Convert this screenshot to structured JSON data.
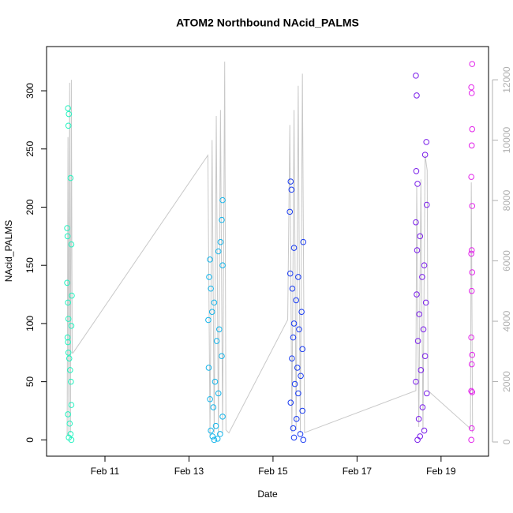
{
  "chart_data": {
    "type": "scatter",
    "title": "ATOM2 Northbound NAcid_PALMS",
    "x_label": "Date",
    "y_label": "NAcid_PALMS",
    "xlim": [
      9.61,
      20.13
    ],
    "xticks": [
      {
        "value": 11,
        "label": "Feb 11"
      },
      {
        "value": 13,
        "label": "Feb 13"
      },
      {
        "value": 15,
        "label": "Feb 15"
      },
      {
        "value": 17,
        "label": "Feb 17"
      },
      {
        "value": 19,
        "label": "Feb 19"
      }
    ],
    "ylim": [
      -14,
      338
    ],
    "yticks": [
      0,
      50,
      100,
      150,
      200,
      250,
      300
    ],
    "y2lim": [
      -470,
      13100
    ],
    "y2ticks": [
      0,
      2000,
      4000,
      6000,
      8000,
      10000,
      12000
    ],
    "series": [
      {
        "color": "#22f2bf",
        "x": [
          10.12,
          10.14,
          10.13,
          10.18,
          10.1,
          10.11,
          10.2,
          10.1,
          10.21,
          10.12,
          10.13,
          10.2,
          10.11,
          10.12,
          10.13,
          10.15,
          10.17,
          10.19,
          10.2,
          10.12,
          10.16,
          10.18,
          10.14,
          10.2
        ],
        "values": [
          285,
          280,
          270,
          225,
          182,
          175,
          168,
          135,
          124,
          118,
          104,
          98,
          88,
          84,
          75,
          70,
          60,
          50,
          30,
          22,
          14,
          5,
          2,
          0
        ]
      },
      {
        "color": "#13b4ea",
        "x": [
          13.8,
          13.78,
          13.5,
          13.7,
          13.48,
          13.75,
          13.52,
          13.8,
          13.46,
          13.6,
          13.72,
          13.55,
          13.66,
          13.78,
          13.47,
          13.62,
          13.7,
          13.5,
          13.58,
          13.8,
          13.64,
          13.52,
          13.74,
          13.56,
          13.68,
          13.6
        ],
        "values": [
          206,
          189,
          155,
          162,
          140,
          170,
          130,
          150,
          103,
          118,
          95,
          110,
          85,
          72,
          62,
          50,
          40,
          35,
          28,
          20,
          12,
          8,
          5,
          3,
          1,
          0
        ]
      },
      {
        "color": "#1a3cf2",
        "x": [
          15.42,
          15.44,
          15.4,
          15.72,
          15.5,
          15.41,
          15.6,
          15.46,
          15.55,
          15.68,
          15.5,
          15.62,
          15.48,
          15.7,
          15.45,
          15.58,
          15.66,
          15.52,
          15.6,
          15.42,
          15.7,
          15.56,
          15.48,
          15.65,
          15.5,
          15.72
        ],
        "values": [
          222,
          215,
          196,
          170,
          165,
          143,
          140,
          130,
          120,
          110,
          100,
          95,
          88,
          78,
          70,
          62,
          55,
          48,
          40,
          32,
          25,
          18,
          10,
          5,
          2,
          0
        ]
      },
      {
        "color": "#7a1eea",
        "x": [
          18.4,
          18.42,
          18.41,
          18.65,
          18.44,
          18.62,
          18.4,
          18.66,
          18.5,
          18.43,
          18.6,
          18.55,
          18.42,
          18.64,
          18.48,
          18.58,
          18.45,
          18.62,
          18.52,
          18.4,
          18.66,
          18.56,
          18.47,
          18.6,
          18.5,
          18.44
        ],
        "values": [
          313,
          296,
          231,
          256,
          220,
          245,
          187,
          202,
          175,
          163,
          150,
          140,
          125,
          118,
          108,
          95,
          85,
          72,
          60,
          50,
          40,
          28,
          18,
          8,
          3,
          0
        ]
      },
      {
        "color": "#e223ea",
        "x": [
          19.74,
          19.72,
          19.73,
          19.74,
          19.73,
          19.72,
          19.74,
          19.73,
          19.72,
          19.74,
          19.73,
          19.72,
          19.74,
          19.73,
          19.72,
          19.74,
          19.73,
          19.72
        ],
        "values": [
          323,
          303,
          298,
          267,
          253,
          226,
          201,
          163,
          160,
          144,
          128,
          88,
          73,
          65,
          42,
          41,
          10,
          0
        ]
      },
      {
        "color": "#c8c8c8",
        "axis": "y2",
        "line": true,
        "x": [
          10.1,
          10.12,
          10.14,
          10.16,
          10.18,
          10.2,
          10.22,
          10.24,
          13.45,
          13.5,
          13.55,
          13.6,
          13.65,
          13.7,
          13.75,
          13.8,
          13.85,
          13.88,
          13.95,
          15.35,
          15.4,
          15.45,
          15.5,
          15.55,
          15.6,
          15.65,
          15.7,
          15.75,
          18.4,
          18.42,
          18.47,
          18.52,
          18.57,
          18.62,
          18.67,
          18.69,
          19.7,
          19.72,
          19.75
        ],
        "values": [
          200,
          10100,
          200,
          11900,
          300,
          12000,
          2950,
          2950,
          9500,
          200,
          10000,
          300,
          10800,
          200,
          11000,
          300,
          12600,
          400,
          300,
          4050,
          10500,
          300,
          11000,
          400,
          11800,
          300,
          12200,
          310,
          1700,
          8500,
          500,
          8700,
          400,
          9500,
          9000,
          1700,
          440,
          8600,
          300
        ]
      }
    ]
  }
}
